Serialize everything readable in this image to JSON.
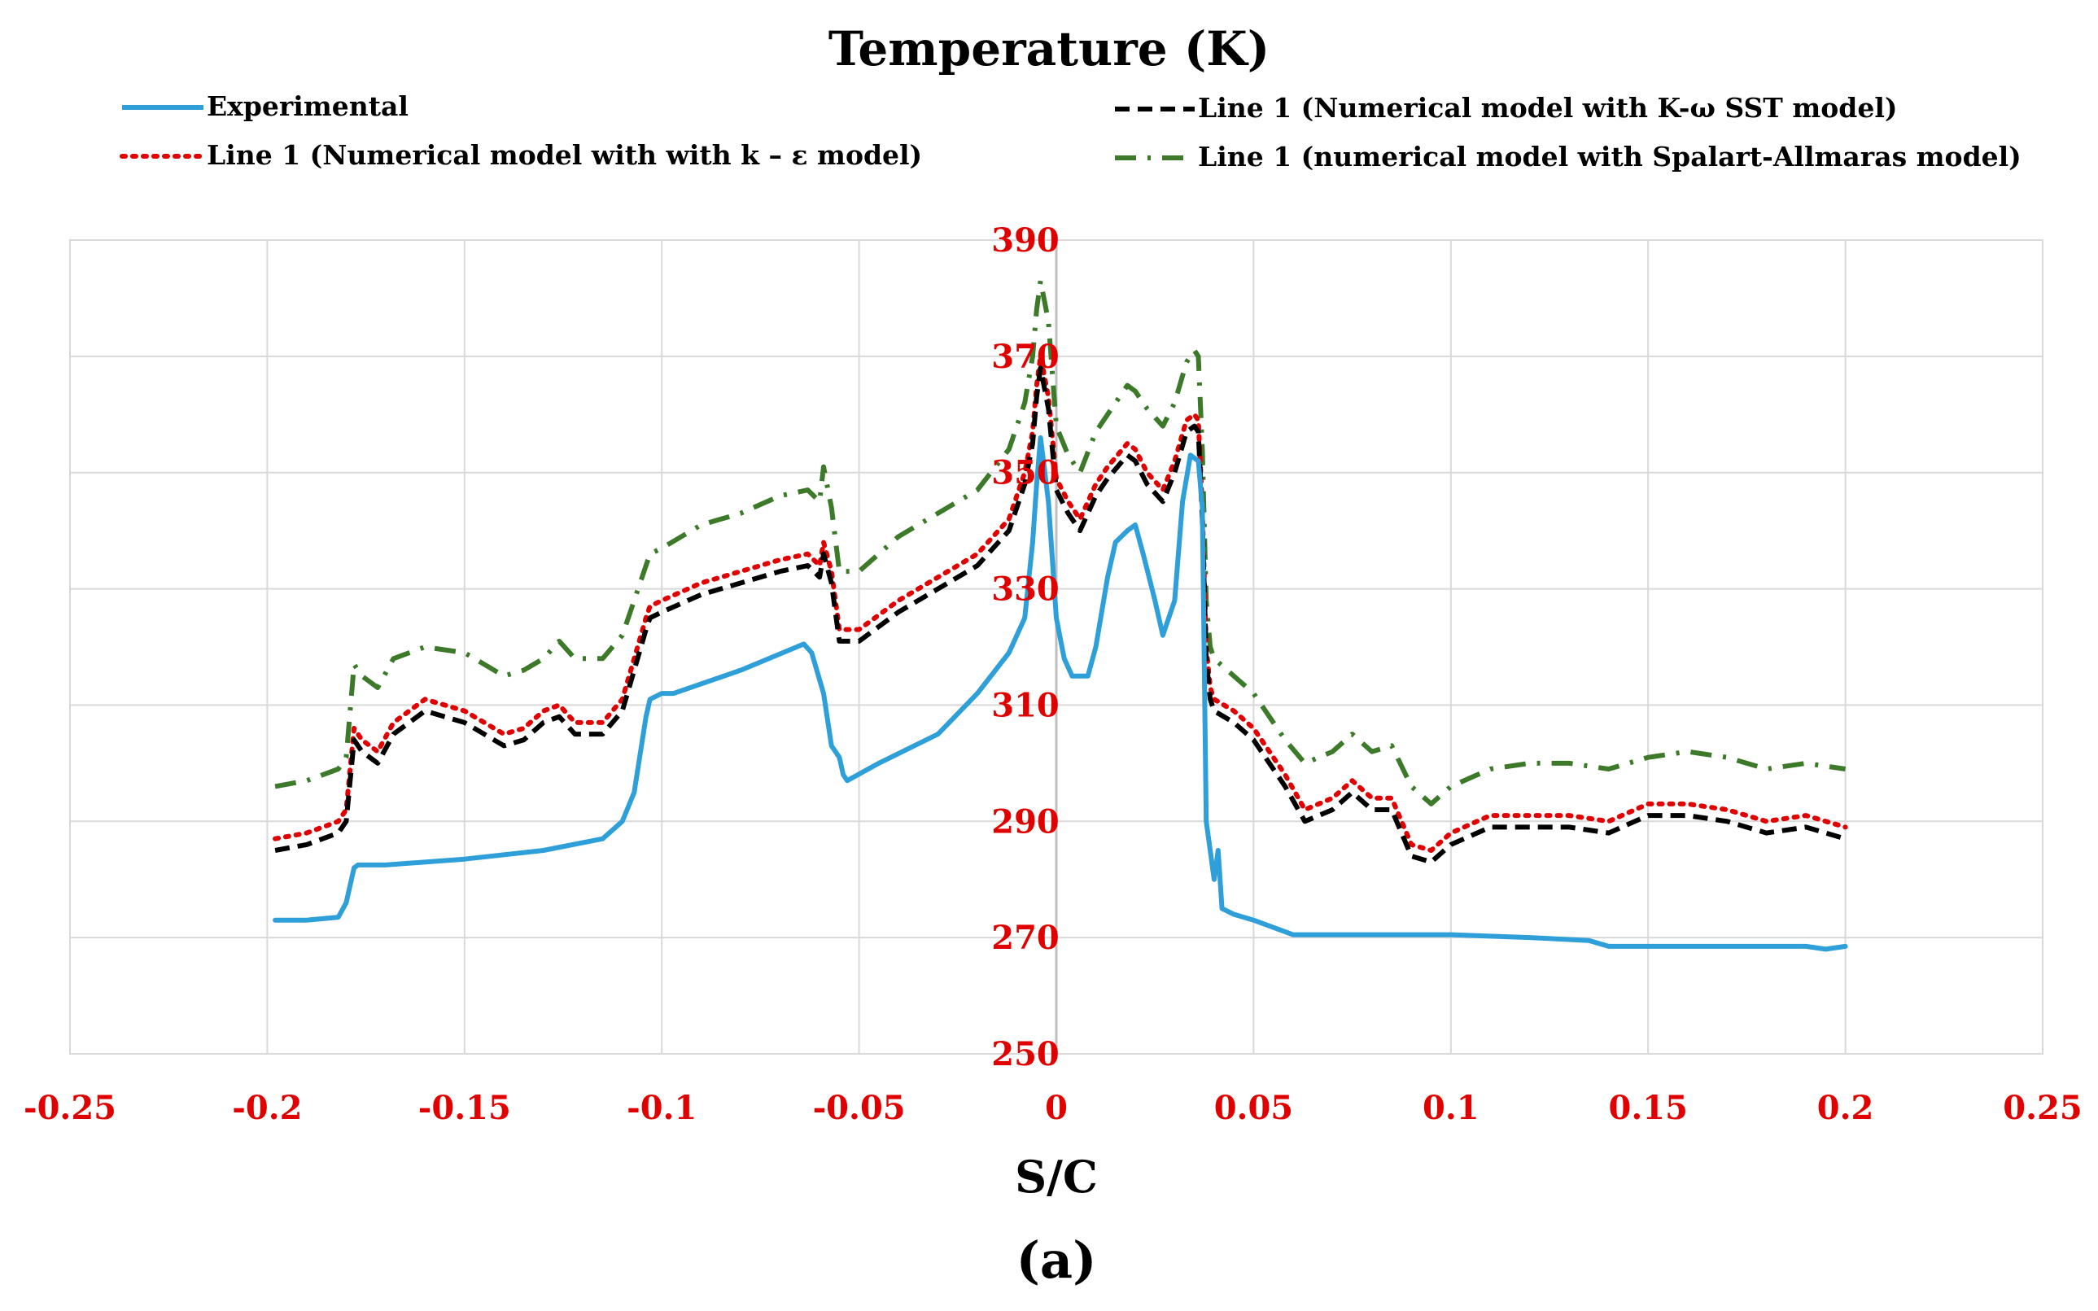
{
  "chart_data": {
    "type": "line",
    "title": "Temperature (K)",
    "xlabel": "S/C",
    "ylabel": "",
    "caption": "(a)",
    "xlim": [
      -0.25,
      0.25
    ],
    "ylim": [
      250,
      390
    ],
    "xticks": [
      "-0.25",
      "-0.2",
      "-0.15",
      "-0.1",
      "-0.05",
      "0",
      "0.05",
      "0.1",
      "0.15",
      "0.2",
      "0.25"
    ],
    "yticks": [
      "250",
      "270",
      "290",
      "310",
      "330",
      "350",
      "370",
      "390"
    ],
    "tick_color": "#e00000",
    "grid": true,
    "series": [
      {
        "name": "Experimental",
        "style": "solid",
        "color": "#2e9fd8",
        "x": [
          -0.198,
          -0.19,
          -0.182,
          -0.18,
          -0.178,
          -0.177,
          -0.17,
          -0.15,
          -0.13,
          -0.115,
          -0.11,
          -0.107,
          -0.104,
          -0.103,
          -0.1,
          -0.097,
          -0.08,
          -0.064,
          -0.062,
          -0.059,
          -0.057,
          -0.055,
          -0.054,
          -0.053,
          -0.045,
          -0.03,
          -0.02,
          -0.012,
          -0.008,
          -0.006,
          -0.005,
          -0.004,
          -0.002,
          0.0,
          0.002,
          0.004,
          0.008,
          0.01,
          0.013,
          0.015,
          0.018,
          0.02,
          0.022,
          0.025,
          0.027,
          0.03,
          0.032,
          0.034,
          0.036,
          0.037,
          0.038,
          0.039,
          0.04,
          0.041,
          0.042,
          0.045,
          0.05,
          0.06,
          0.08,
          0.1,
          0.12,
          0.135,
          0.14,
          0.15,
          0.17,
          0.19,
          0.195,
          0.2
        ],
        "values": [
          273,
          273,
          273.5,
          276,
          282,
          282.5,
          282.5,
          283.5,
          285,
          287,
          290,
          295,
          308,
          311,
          312,
          312,
          316,
          320.5,
          319,
          312,
          303,
          301,
          298,
          297,
          300,
          305,
          312,
          319,
          325,
          338,
          348,
          356,
          345,
          325,
          318,
          315,
          315,
          320,
          332,
          338,
          340,
          341,
          336,
          328,
          322,
          328,
          345,
          353,
          352,
          344,
          290,
          285,
          280,
          285,
          275,
          274,
          273,
          270.5,
          270.5,
          270.5,
          270,
          269.5,
          268.5,
          268.5,
          268.5,
          268.5,
          268,
          268.5
        ]
      },
      {
        "name": "Line 1 (Numerical model with  K-ω SST model)",
        "style": "dashed",
        "color": "#000000",
        "x": [
          -0.198,
          -0.19,
          -0.182,
          -0.18,
          -0.178,
          -0.176,
          -0.172,
          -0.168,
          -0.16,
          -0.15,
          -0.14,
          -0.135,
          -0.13,
          -0.126,
          -0.122,
          -0.115,
          -0.11,
          -0.107,
          -0.104,
          -0.103,
          -0.1,
          -0.09,
          -0.08,
          -0.07,
          -0.063,
          -0.06,
          -0.059,
          -0.057,
          -0.055,
          -0.05,
          -0.04,
          -0.03,
          -0.02,
          -0.012,
          -0.008,
          -0.006,
          -0.005,
          -0.004,
          -0.002,
          0.0,
          0.003,
          0.006,
          0.01,
          0.013,
          0.018,
          0.02,
          0.023,
          0.027,
          0.03,
          0.033,
          0.035,
          0.036,
          0.037,
          0.038,
          0.039,
          0.04,
          0.045,
          0.05,
          0.058,
          0.063,
          0.07,
          0.075,
          0.08,
          0.085,
          0.09,
          0.095,
          0.1,
          0.11,
          0.12,
          0.13,
          0.14,
          0.15,
          0.16,
          0.17,
          0.18,
          0.19,
          0.2
        ],
        "values": [
          285,
          286,
          288,
          290,
          304,
          302,
          300,
          305,
          309,
          307,
          303,
          304,
          307,
          308,
          305,
          305,
          309,
          316,
          323,
          325,
          326,
          329,
          331,
          333,
          334,
          332,
          336,
          331,
          321,
          321,
          326,
          330,
          334,
          340,
          348,
          355,
          363,
          368,
          361,
          347,
          343,
          340,
          346,
          349,
          353,
          352,
          348,
          345,
          350,
          357,
          358,
          357,
          342,
          318,
          311,
          309,
          307,
          304,
          296,
          290,
          292,
          295,
          292,
          292,
          284,
          283,
          286,
          289,
          289,
          289,
          288,
          291,
          291,
          290,
          288,
          289,
          287
        ]
      },
      {
        "name": "Line 1 (Numerical model with with k – ε model)",
        "style": "dotted",
        "color": "#e00000",
        "x": [
          -0.198,
          -0.19,
          -0.182,
          -0.18,
          -0.178,
          -0.176,
          -0.172,
          -0.168,
          -0.16,
          -0.15,
          -0.14,
          -0.135,
          -0.13,
          -0.126,
          -0.122,
          -0.115,
          -0.11,
          -0.107,
          -0.104,
          -0.103,
          -0.1,
          -0.09,
          -0.08,
          -0.07,
          -0.063,
          -0.06,
          -0.059,
          -0.057,
          -0.055,
          -0.05,
          -0.04,
          -0.03,
          -0.02,
          -0.012,
          -0.008,
          -0.006,
          -0.005,
          -0.004,
          -0.002,
          0.0,
          0.003,
          0.006,
          0.01,
          0.013,
          0.018,
          0.02,
          0.023,
          0.027,
          0.03,
          0.033,
          0.035,
          0.036,
          0.037,
          0.038,
          0.039,
          0.04,
          0.045,
          0.05,
          0.058,
          0.063,
          0.07,
          0.075,
          0.08,
          0.085,
          0.09,
          0.095,
          0.1,
          0.11,
          0.12,
          0.13,
          0.14,
          0.15,
          0.16,
          0.17,
          0.18,
          0.19,
          0.2
        ],
        "values": [
          287,
          288,
          290,
          292,
          306,
          304,
          302,
          307,
          311,
          309,
          305,
          306,
          309,
          310,
          307,
          307,
          311,
          318,
          325,
          327,
          328,
          331,
          333,
          335,
          336,
          334,
          338,
          333,
          323,
          323,
          328,
          332,
          336,
          342,
          350,
          357,
          365,
          370,
          363,
          349,
          345,
          342,
          348,
          351,
          355,
          354,
          350,
          347,
          352,
          359,
          360,
          359,
          344,
          320,
          313,
          311,
          309,
          306,
          298,
          292,
          294,
          297,
          294,
          294,
          286,
          285,
          288,
          291,
          291,
          291,
          290,
          293,
          293,
          292,
          290,
          291,
          289
        ]
      },
      {
        "name": "Line 1 (numerical model with Spalart-Allmaras model)",
        "style": "dashdot",
        "color": "#3c7a2a",
        "x": [
          -0.198,
          -0.19,
          -0.182,
          -0.18,
          -0.178,
          -0.176,
          -0.172,
          -0.168,
          -0.16,
          -0.15,
          -0.14,
          -0.135,
          -0.13,
          -0.126,
          -0.122,
          -0.115,
          -0.11,
          -0.107,
          -0.104,
          -0.103,
          -0.1,
          -0.09,
          -0.08,
          -0.07,
          -0.063,
          -0.06,
          -0.059,
          -0.057,
          -0.055,
          -0.05,
          -0.04,
          -0.03,
          -0.02,
          -0.012,
          -0.008,
          -0.006,
          -0.005,
          -0.004,
          -0.002,
          0.0,
          0.003,
          0.006,
          0.01,
          0.013,
          0.018,
          0.02,
          0.023,
          0.027,
          0.03,
          0.033,
          0.035,
          0.036,
          0.037,
          0.038,
          0.039,
          0.04,
          0.045,
          0.05,
          0.058,
          0.063,
          0.07,
          0.075,
          0.08,
          0.085,
          0.09,
          0.095,
          0.1,
          0.11,
          0.12,
          0.13,
          0.14,
          0.15,
          0.16,
          0.17,
          0.18,
          0.19,
          0.2
        ],
        "values": [
          296,
          297,
          299,
          301,
          317,
          315,
          313,
          318,
          320,
          319,
          315,
          316,
          318,
          321,
          318,
          318,
          322,
          328,
          334,
          336,
          337,
          341,
          343,
          346,
          347,
          345,
          351,
          344,
          333,
          333,
          339,
          343,
          347,
          354,
          362,
          370,
          378,
          383,
          376,
          358,
          353,
          350,
          357,
          360,
          365,
          364,
          361,
          358,
          362,
          369,
          371,
          370,
          354,
          328,
          320,
          318,
          315,
          312,
          304,
          300,
          302,
          305,
          302,
          303,
          296,
          293,
          296,
          299,
          300,
          300,
          299,
          301,
          302,
          301,
          299,
          300,
          299
        ]
      }
    ]
  }
}
